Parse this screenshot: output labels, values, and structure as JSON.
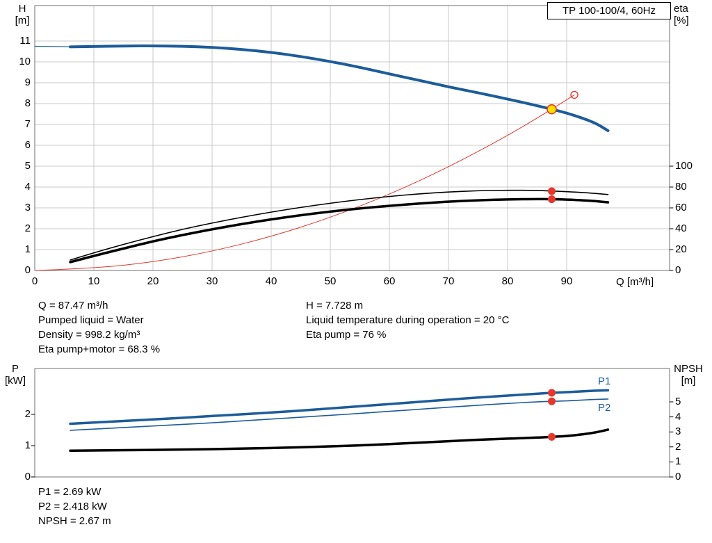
{
  "colors": {
    "blue": "#1c5c99",
    "black": "#000000",
    "red": "#e5372c",
    "grid": "#c9c9c9",
    "frame": "#6f6f6f",
    "duty_fill": "#ffdf00",
    "label_blue": "#1c5c99"
  },
  "labels": {
    "h_axis": [
      "H",
      "[m]"
    ],
    "eta_axis": [
      "eta",
      "[%]"
    ],
    "q_axis": "Q [m³/h]",
    "p_axis": [
      "P",
      "[kW]"
    ],
    "npsh_axis": [
      "NPSH",
      "[m]"
    ],
    "p1": "P1",
    "p2": "P2"
  },
  "readouts": {
    "left": [
      "Q = 87.47 m³/h",
      "Pumped liquid = Water",
      "Density = 998.2 kg/m³",
      "Eta pump+motor = 68.3 %"
    ],
    "right": [
      "H = 7.728 m",
      "Liquid temperature during operation = 20 °C",
      "Eta pump = 76 %"
    ],
    "bottom": [
      "P1 = 2.69 kW",
      "P2 = 2.418 kW",
      "NPSH = 2.67 m"
    ]
  },
  "chart_data": [
    {
      "type": "line",
      "title": "TP 100-100/4, 60Hz",
      "xlabel": "Q [m³/h]",
      "ylabel": "H [m]",
      "y2label": "eta [%]",
      "xlim": [
        0,
        107.4
      ],
      "ylim": [
        0,
        12.7
      ],
      "y2lim": [
        0,
        254
      ],
      "grid": true,
      "tick_marks": {
        "y": false,
        "y2": true
      },
      "x_ticks": [
        0,
        10,
        20,
        30,
        40,
        50,
        60,
        70,
        80,
        90
      ],
      "y_ticks": [
        0,
        1,
        2,
        3,
        4,
        5,
        6,
        7,
        8,
        9,
        10,
        11
      ],
      "y2_ticks": [
        0,
        20,
        40,
        60,
        80,
        100
      ],
      "series": [
        {
          "name": "pump-curve-low-flow",
          "axis": "y",
          "color": "blue",
          "width": 1.2,
          "points": [
            [
              0,
              10.75
            ],
            [
              3,
              10.74
            ],
            [
              6,
              10.72
            ]
          ]
        },
        {
          "name": "pump-curve",
          "axis": "y",
          "color": "blue",
          "width": 4,
          "points": [
            [
              6,
              10.72
            ],
            [
              10,
              10.74
            ],
            [
              15,
              10.76
            ],
            [
              20,
              10.77
            ],
            [
              25,
              10.75
            ],
            [
              30,
              10.7
            ],
            [
              35,
              10.6
            ],
            [
              40,
              10.46
            ],
            [
              45,
              10.26
            ],
            [
              50,
              10.02
            ],
            [
              55,
              9.74
            ],
            [
              60,
              9.42
            ],
            [
              65,
              9.12
            ],
            [
              70,
              8.8
            ],
            [
              75,
              8.52
            ],
            [
              80,
              8.22
            ],
            [
              85,
              7.9
            ],
            [
              87.47,
              7.728
            ],
            [
              90,
              7.55
            ],
            [
              93,
              7.27
            ],
            [
              95,
              7.05
            ],
            [
              97,
              6.7
            ]
          ]
        },
        {
          "name": "system-curve",
          "axis": "y",
          "color": "red",
          "width": 1,
          "points": [
            [
              0,
              0
            ],
            [
              10,
              0.1
            ],
            [
              20,
              0.4
            ],
            [
              30,
              0.91
            ],
            [
              40,
              1.62
            ],
            [
              50,
              2.53
            ],
            [
              60,
              3.64
            ],
            [
              70,
              4.95
            ],
            [
              80,
              6.46
            ],
            [
              87.47,
              7.728
            ],
            [
              91.3,
              8.42
            ]
          ]
        },
        {
          "name": "eta-pump-curve",
          "axis": "y2",
          "color": "black",
          "width": 1.6,
          "points": [
            [
              6,
              10
            ],
            [
              10,
              17
            ],
            [
              15,
              25
            ],
            [
              20,
              32.5
            ],
            [
              25,
              39.5
            ],
            [
              30,
              45.5
            ],
            [
              35,
              51
            ],
            [
              40,
              56
            ],
            [
              45,
              60.5
            ],
            [
              50,
              64.5
            ],
            [
              55,
              68
            ],
            [
              60,
              71
            ],
            [
              65,
              73.5
            ],
            [
              70,
              75.3
            ],
            [
              75,
              76.5
            ],
            [
              80,
              77
            ],
            [
              85,
              76.7
            ],
            [
              87.47,
              76.2
            ],
            [
              90,
              75.6
            ],
            [
              93,
              74.6
            ],
            [
              95,
              73.8
            ],
            [
              97,
              72.8
            ]
          ]
        },
        {
          "name": "eta-pump-motor-curve",
          "axis": "y2",
          "color": "black",
          "width": 3.5,
          "points": [
            [
              6,
              8
            ],
            [
              10,
              14
            ],
            [
              15,
              21
            ],
            [
              20,
              28
            ],
            [
              25,
              34
            ],
            [
              30,
              39.5
            ],
            [
              35,
              44.5
            ],
            [
              40,
              49
            ],
            [
              45,
              53
            ],
            [
              50,
              56.5
            ],
            [
              55,
              59.5
            ],
            [
              60,
              62
            ],
            [
              65,
              64.2
            ],
            [
              70,
              66
            ],
            [
              75,
              67.3
            ],
            [
              80,
              68.2
            ],
            [
              85,
              68.5
            ],
            [
              87.47,
              68.3
            ],
            [
              90,
              68.0
            ],
            [
              93,
              67.2
            ],
            [
              95,
              66.4
            ],
            [
              97,
              65.3
            ]
          ]
        }
      ],
      "markers": [
        {
          "name": "duty-point",
          "style": "duty",
          "axis": "y",
          "x": 87.47,
          "v": 7.728
        },
        {
          "name": "rated-point",
          "style": "open",
          "axis": "y",
          "x": 91.3,
          "v": 8.42
        },
        {
          "name": "eta-pump-marker",
          "style": "dot",
          "axis": "y2",
          "x": 87.47,
          "v": 76
        },
        {
          "name": "eta-pump-motor-marker",
          "style": "dot",
          "axis": "y2",
          "x": 87.47,
          "v": 68.3
        }
      ],
      "duty_point": {
        "q": 87.47,
        "h": 7.728
      }
    },
    {
      "type": "line",
      "title": "",
      "xlabel": "",
      "ylabel": "P [kW]",
      "y2label": "NPSH [m]",
      "xlim": [
        0,
        107.4
      ],
      "ylim": [
        0,
        3.47
      ],
      "y2lim": [
        0,
        7.2
      ],
      "grid": false,
      "tick_marks": {
        "y": true,
        "y2": true
      },
      "x_ticks": [],
      "y_ticks": [
        0,
        1,
        2
      ],
      "y2_ticks": [
        0,
        1,
        2,
        3,
        4,
        5
      ],
      "series": [
        {
          "name": "p1-curve",
          "axis": "y",
          "color": "blue",
          "width": 3.5,
          "points": [
            [
              6,
              1.7
            ],
            [
              10,
              1.74
            ],
            [
              15,
              1.79
            ],
            [
              20,
              1.84
            ],
            [
              25,
              1.89
            ],
            [
              30,
              1.95
            ],
            [
              35,
              2.0
            ],
            [
              40,
              2.06
            ],
            [
              45,
              2.12
            ],
            [
              50,
              2.19
            ],
            [
              55,
              2.26
            ],
            [
              60,
              2.33
            ],
            [
              65,
              2.4
            ],
            [
              70,
              2.47
            ],
            [
              75,
              2.54
            ],
            [
              80,
              2.6
            ],
            [
              85,
              2.66
            ],
            [
              87.47,
              2.69
            ],
            [
              90,
              2.71
            ],
            [
              93,
              2.74
            ],
            [
              95,
              2.76
            ],
            [
              97,
              2.77
            ]
          ]
        },
        {
          "name": "p2-curve",
          "axis": "y",
          "color": "blue",
          "width": 1.6,
          "points": [
            [
              6,
              1.49
            ],
            [
              10,
              1.53
            ],
            [
              15,
              1.58
            ],
            [
              20,
              1.63
            ],
            [
              25,
              1.68
            ],
            [
              30,
              1.73
            ],
            [
              35,
              1.79
            ],
            [
              40,
              1.85
            ],
            [
              45,
              1.91
            ],
            [
              50,
              1.97
            ],
            [
              55,
              2.03
            ],
            [
              60,
              2.1
            ],
            [
              65,
              2.16
            ],
            [
              70,
              2.23
            ],
            [
              75,
              2.29
            ],
            [
              80,
              2.35
            ],
            [
              85,
              2.4
            ],
            [
              87.47,
              2.418
            ],
            [
              90,
              2.43
            ],
            [
              93,
              2.46
            ],
            [
              95,
              2.48
            ],
            [
              97,
              2.49
            ]
          ]
        },
        {
          "name": "npsh-curve",
          "axis": "y2",
          "color": "black",
          "width": 3.5,
          "points": [
            [
              6,
              1.75
            ],
            [
              15,
              1.78
            ],
            [
              25,
              1.82
            ],
            [
              35,
              1.88
            ],
            [
              45,
              1.97
            ],
            [
              55,
              2.1
            ],
            [
              65,
              2.28
            ],
            [
              75,
              2.48
            ],
            [
              85,
              2.62
            ],
            [
              87.47,
              2.67
            ],
            [
              90,
              2.72
            ],
            [
              93,
              2.85
            ],
            [
              95,
              2.97
            ],
            [
              97,
              3.15
            ]
          ]
        }
      ],
      "markers": [
        {
          "name": "p1-marker",
          "style": "dot",
          "axis": "y",
          "x": 87.47,
          "v": 2.69
        },
        {
          "name": "p2-marker",
          "style": "dot",
          "axis": "y",
          "x": 87.47,
          "v": 2.418
        },
        {
          "name": "npsh-marker",
          "style": "dot",
          "axis": "y2",
          "x": 87.47,
          "v": 2.67
        }
      ]
    }
  ]
}
